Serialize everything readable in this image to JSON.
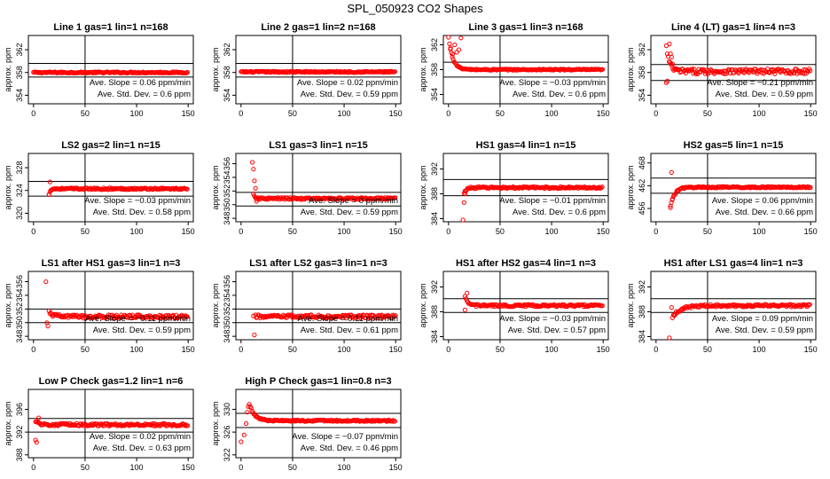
{
  "title": "SPL_050923  CO2 Shapes",
  "colors": {
    "points": "#ff0000",
    "axis": "#000000"
  },
  "chart_data": [
    {
      "type": "scatter",
      "title": "Line 1 gas=1 lin=1 n=168",
      "ylabel": "approx. ppm",
      "xlim": [
        -5,
        155
      ],
      "ylim": [
        352.5,
        364.5
      ],
      "yticks": [
        354,
        358,
        362
      ],
      "xticks": [
        0,
        50,
        100,
        150
      ],
      "vline": 50,
      "hlines": [
        357.2,
        359.6
      ],
      "slope": "Ave. Slope =  0.06  ppm/min",
      "std": "Ave. Std. Dev. =  0.6  ppm",
      "shape": {
        "x0": 0,
        "y0": 358.0,
        "flat": 358.0,
        "tau": 1,
        "noise": 0.12,
        "extra": []
      }
    },
    {
      "type": "scatter",
      "title": "Line 2 gas=1 lin=2 n=168",
      "ylabel": "approx. ppm",
      "xlim": [
        -5,
        155
      ],
      "ylim": [
        352.5,
        364.5
      ],
      "yticks": [
        354,
        358,
        362
      ],
      "xticks": [
        0,
        50,
        100,
        150
      ],
      "vline": 50,
      "hlines": [
        357.2,
        359.6
      ],
      "slope": "Ave. Slope =  0.02  ppm/min",
      "std": "Ave. Std. Dev. =  0.59  ppm",
      "shape": {
        "x0": 0,
        "y0": 358.1,
        "flat": 358.1,
        "tau": 1,
        "noise": 0.12,
        "extra": []
      }
    },
    {
      "type": "scatter",
      "title": "Line 3 gas=1 lin=3 n=168",
      "ylabel": "approx. ppm",
      "xlim": [
        -5,
        155
      ],
      "ylim": [
        352.5,
        363.5
      ],
      "yticks": [
        354,
        358,
        362
      ],
      "xticks": [
        0,
        50,
        100,
        150
      ],
      "vline": 50,
      "hlines": [
        356.8,
        359.2
      ],
      "slope": "Ave. Slope =  −0.03  ppm/min",
      "std": "Ave. Std. Dev. =  0.6  ppm",
      "shape": {
        "x0": 0,
        "y0": 363.2,
        "flat": 358.0,
        "tau": 4,
        "noise": 0.1,
        "extra": [
          [
            2,
            361.5
          ],
          [
            4,
            360.5
          ],
          [
            6,
            362.0
          ],
          [
            8,
            360.8
          ],
          [
            10,
            361.2
          ],
          [
            12,
            363.1
          ]
        ]
      }
    },
    {
      "type": "scatter",
      "title": "Line 4 (LT) gas=1 lin=4 n=3",
      "ylabel": "approx. ppm",
      "xlim": [
        -5,
        155
      ],
      "ylim": [
        352.5,
        364.5
      ],
      "yticks": [
        354,
        358,
        362
      ],
      "xticks": [
        0,
        50,
        100,
        150
      ],
      "vline": 50,
      "hlines": [
        356.6,
        359.4
      ],
      "slope": "Ave. Slope =  −0.21  ppm/min",
      "std": "Ave. Std. Dev. =  0.59  ppm",
      "shape": {
        "x0": 10,
        "y0": 362.5,
        "flat": 358.2,
        "tau": 3,
        "noise": 0.45,
        "extra": [
          [
            10,
            356.2
          ],
          [
            11,
            356.5
          ],
          [
            13,
            363.0
          ],
          [
            14,
            361.3
          ],
          [
            15,
            360.7
          ],
          [
            16,
            359.5
          ]
        ]
      }
    },
    {
      "type": "scatter",
      "title": "LS2 gas=2 lin=1 n=15",
      "ylabel": "approx. ppm",
      "xlim": [
        -5,
        155
      ],
      "ylim": [
        318.5,
        330.5
      ],
      "yticks": [
        320,
        324,
        328
      ],
      "xticks": [
        0,
        50,
        100,
        150
      ],
      "vline": 50,
      "hlines": [
        323.0,
        325.6
      ],
      "slope": "Ave. Slope =  −0.03  ppm/min",
      "std": "Ave. Std. Dev. =  0.58  ppm",
      "shape": {
        "x0": 15,
        "y0": 323.2,
        "flat": 324.3,
        "tau": 1,
        "noise": 0.15,
        "extra": [
          [
            16,
            325.5
          ],
          [
            15,
            323.3
          ]
        ]
      }
    },
    {
      "type": "scatter",
      "title": "LS1 gas=3 lin=1 n=15",
      "ylabel": "approx. ppm",
      "xlim": [
        -5,
        155
      ],
      "ylim": [
        347.5,
        357.5
      ],
      "yticks": [
        348,
        350,
        352,
        354,
        356
      ],
      "xticks": [
        0,
        50,
        100,
        150
      ],
      "vline": 50,
      "hlines": [
        349.8,
        351.8
      ],
      "slope": "Ave. Slope =  0  ppm/min",
      "std": "Ave. Std. Dev. =  0.59  ppm",
      "shape": {
        "x0": 12,
        "y0": 351.5,
        "flat": 350.9,
        "tau": 1,
        "noise": 0.15,
        "extra": [
          [
            11,
            356.2
          ],
          [
            12,
            355.2
          ],
          [
            13,
            353.5
          ],
          [
            14,
            352.4
          ],
          [
            15,
            350.5
          ]
        ]
      }
    },
    {
      "type": "scatter",
      "title": "HS1 gas=4 lin=1 n=15",
      "ylabel": "approx. ppm",
      "xlim": [
        -5,
        155
      ],
      "ylim": [
        383.5,
        394.5
      ],
      "yticks": [
        384,
        388,
        392
      ],
      "xticks": [
        0,
        50,
        100,
        150
      ],
      "vline": 50,
      "hlines": [
        387.7,
        390.3
      ],
      "slope": "Ave. Slope =  −0.01  ppm/min",
      "std": "Ave. Std. Dev. =  0.6  ppm",
      "shape": {
        "x0": 15,
        "y0": 388.0,
        "flat": 389.0,
        "tau": 2,
        "noise": 0.15,
        "extra": [
          [
            14,
            383.6
          ],
          [
            15,
            386.6
          ],
          [
            16,
            388.0
          ]
        ]
      }
    },
    {
      "type": "scatter",
      "title": "HS2 gas=5 lin=1 n=15",
      "ylabel": "approx. ppm",
      "xlim": [
        -5,
        155
      ],
      "ylim": [
        452.5,
        470.5
      ],
      "yticks": [
        456,
        462,
        468
      ],
      "xticks": [
        0,
        50,
        100,
        150
      ],
      "vline": 50,
      "hlines": [
        460.0,
        464.0
      ],
      "slope": "Ave. Slope =  0.06  ppm/min",
      "std": "Ave. Std. Dev. =  0.66  ppm",
      "shape": {
        "x0": 14,
        "y0": 456.5,
        "flat": 461.6,
        "tau": 4,
        "noise": 0.2,
        "extra": [
          [
            15,
            465.5
          ],
          [
            14,
            456.2
          ],
          [
            16,
            458.5
          ]
        ]
      }
    },
    {
      "type": "scatter",
      "title": "LS1 after HS1 gas=3 lin=1 n=3",
      "ylabel": "approx. ppm",
      "xlim": [
        -5,
        155
      ],
      "ylim": [
        347.5,
        357.5
      ],
      "yticks": [
        348,
        350,
        352,
        354,
        356
      ],
      "xticks": [
        0,
        50,
        100,
        150
      ],
      "vline": 50,
      "hlines": [
        350.0,
        352.0
      ],
      "slope": "Ave. Slope =  −0.11  ppm/min",
      "std": "Ave. Std. Dev. =  0.59  ppm",
      "shape": {
        "x0": 15,
        "y0": 351.5,
        "flat": 350.9,
        "tau": 4,
        "noise": 0.25,
        "extra": [
          [
            12,
            356.0
          ],
          [
            13,
            350.0
          ],
          [
            14,
            349.5
          ]
        ]
      }
    },
    {
      "type": "scatter",
      "title": "LS1 after LS2 gas=3 lin=1 n=3",
      "ylabel": "approx. ppm",
      "xlim": [
        -5,
        155
      ],
      "ylim": [
        347.5,
        357.5
      ],
      "yticks": [
        348,
        350,
        352,
        354,
        356
      ],
      "xticks": [
        0,
        50,
        100,
        150
      ],
      "vline": 50,
      "hlines": [
        350.0,
        352.0
      ],
      "slope": "Ave. Slope =  0.11  ppm/min",
      "std": "Ave. Std. Dev. =  0.61  ppm",
      "shape": {
        "x0": 14,
        "y0": 350.9,
        "flat": 350.9,
        "tau": 1,
        "noise": 0.25,
        "extra": [
          [
            13,
            348.2
          ],
          [
            12,
            351.0
          ]
        ]
      }
    },
    {
      "type": "scatter",
      "title": "HS1 after HS2 gas=4 lin=1 n=3",
      "ylabel": "approx. ppm",
      "xlim": [
        -5,
        155
      ],
      "ylim": [
        383.5,
        394.5
      ],
      "yticks": [
        384,
        388,
        392
      ],
      "xticks": [
        0,
        50,
        100,
        150
      ],
      "vline": 50,
      "hlines": [
        387.9,
        390.1
      ],
      "slope": "Ave. Slope =  −0.03  ppm/min",
      "std": "Ave. Std. Dev. =  0.57  ppm",
      "shape": {
        "x0": 16,
        "y0": 390.3,
        "flat": 389.0,
        "tau": 3,
        "noise": 0.18,
        "extra": [
          [
            16,
            388.3
          ],
          [
            18,
            391.0
          ]
        ]
      }
    },
    {
      "type": "scatter",
      "title": "HS1 after LS1 gas=4 lin=1 n=3",
      "ylabel": "approx. ppm",
      "xlim": [
        -5,
        155
      ],
      "ylim": [
        383.5,
        394.5
      ],
      "yticks": [
        384,
        388,
        392
      ],
      "xticks": [
        0,
        50,
        100,
        150
      ],
      "vline": 50,
      "hlines": [
        387.9,
        390.1
      ],
      "slope": "Ave. Slope =  0.09  ppm/min",
      "std": "Ave. Std. Dev. =  0.59  ppm",
      "shape": {
        "x0": 16,
        "y0": 387.2,
        "flat": 389.0,
        "tau": 8,
        "noise": 0.2,
        "extra": [
          [
            13,
            383.8
          ],
          [
            15,
            388.7
          ]
        ]
      }
    },
    {
      "type": "scatter",
      "title": "Low P Check gas=1.2 lin=1 n=6",
      "ylabel": "approx. ppm",
      "xlim": [
        -5,
        155
      ],
      "ylim": [
        387.5,
        399.5
      ],
      "yticks": [
        388,
        392,
        396
      ],
      "xticks": [
        0,
        50,
        100,
        150
      ],
      "vline": 50,
      "hlines": [
        392.0,
        394.4
      ],
      "slope": "Ave. Slope =  0.02  ppm/min",
      "std": "Ave. Std. Dev. =  0.63  ppm",
      "shape": {
        "x0": 2,
        "y0": 394.0,
        "flat": 393.3,
        "tau": 3,
        "noise": 0.22,
        "extra": [
          [
            2,
            390.6
          ],
          [
            3,
            390.2
          ],
          [
            5,
            394.5
          ]
        ]
      }
    },
    {
      "type": "scatter",
      "title": "High P Check gas=1 lin=0.8 n=3",
      "ylabel": "approx. ppm",
      "xlim": [
        -5,
        155
      ],
      "ylim": [
        321.5,
        333.5
      ],
      "yticks": [
        322,
        326,
        330
      ],
      "xticks": [
        0,
        50,
        100,
        150
      ],
      "vline": 50,
      "hlines": [
        326.8,
        329.3
      ],
      "slope": "Ave. Slope =  −0.07  ppm/min",
      "std": "Ave. Std. Dev. =  0.46  ppm",
      "shape": {
        "x0": 8,
        "y0": 331.0,
        "flat": 328.0,
        "tau": 5,
        "noise": 0.13,
        "extra": [
          [
            0,
            324.3
          ],
          [
            3,
            325.5
          ],
          [
            5,
            327.5
          ],
          [
            6,
            329.5
          ],
          [
            7,
            330.5
          ]
        ]
      }
    }
  ]
}
